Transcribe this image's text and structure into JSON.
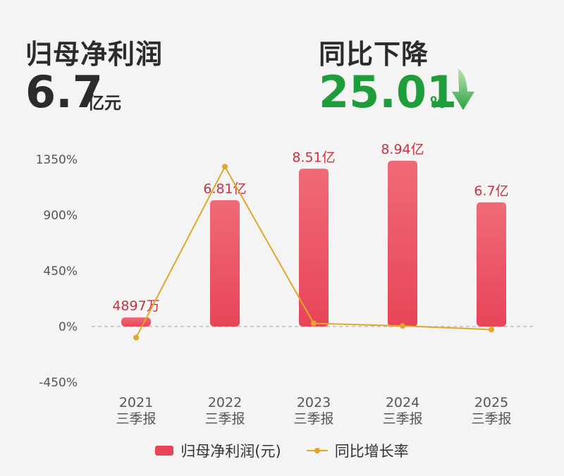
{
  "header": {
    "profit_title": "归母净利润",
    "profit_value": "6.7",
    "profit_unit": "亿元",
    "change_title": "同比下降",
    "change_value": "25.01",
    "change_unit": "%",
    "change_direction_icon": "down-arrow-icon"
  },
  "colors": {
    "bar": "#e84558",
    "bar_top": "#ef6a78",
    "line": "#e0a72a",
    "decrease": "#1f9d3a",
    "label": "#c8323f"
  },
  "chart_data": {
    "type": "bar",
    "categories": [
      "2021",
      "2022",
      "2023",
      "2024",
      "2025"
    ],
    "category_sublabels": [
      "三季报",
      "三季报",
      "三季报",
      "三季报",
      "三季报"
    ],
    "series": [
      {
        "name": "归母净利润(元)",
        "type": "bar",
        "values": [
          48970000,
          681000000,
          851000000,
          894000000,
          670000000
        ],
        "data_labels": [
          "4897万",
          "6.81亿",
          "8.51亿",
          "8.94亿",
          "6.7亿"
        ]
      },
      {
        "name": "同比增长率",
        "type": "line",
        "axis": "left",
        "values": [
          -90,
          1291,
          25,
          5,
          -25
        ]
      }
    ],
    "y_ticks": [
      "1350%",
      "900%",
      "450%",
      "0%",
      "-450%"
    ],
    "ylim": [
      -450,
      1350
    ],
    "y_unit": "%",
    "legend": "bottom",
    "grid": false
  }
}
